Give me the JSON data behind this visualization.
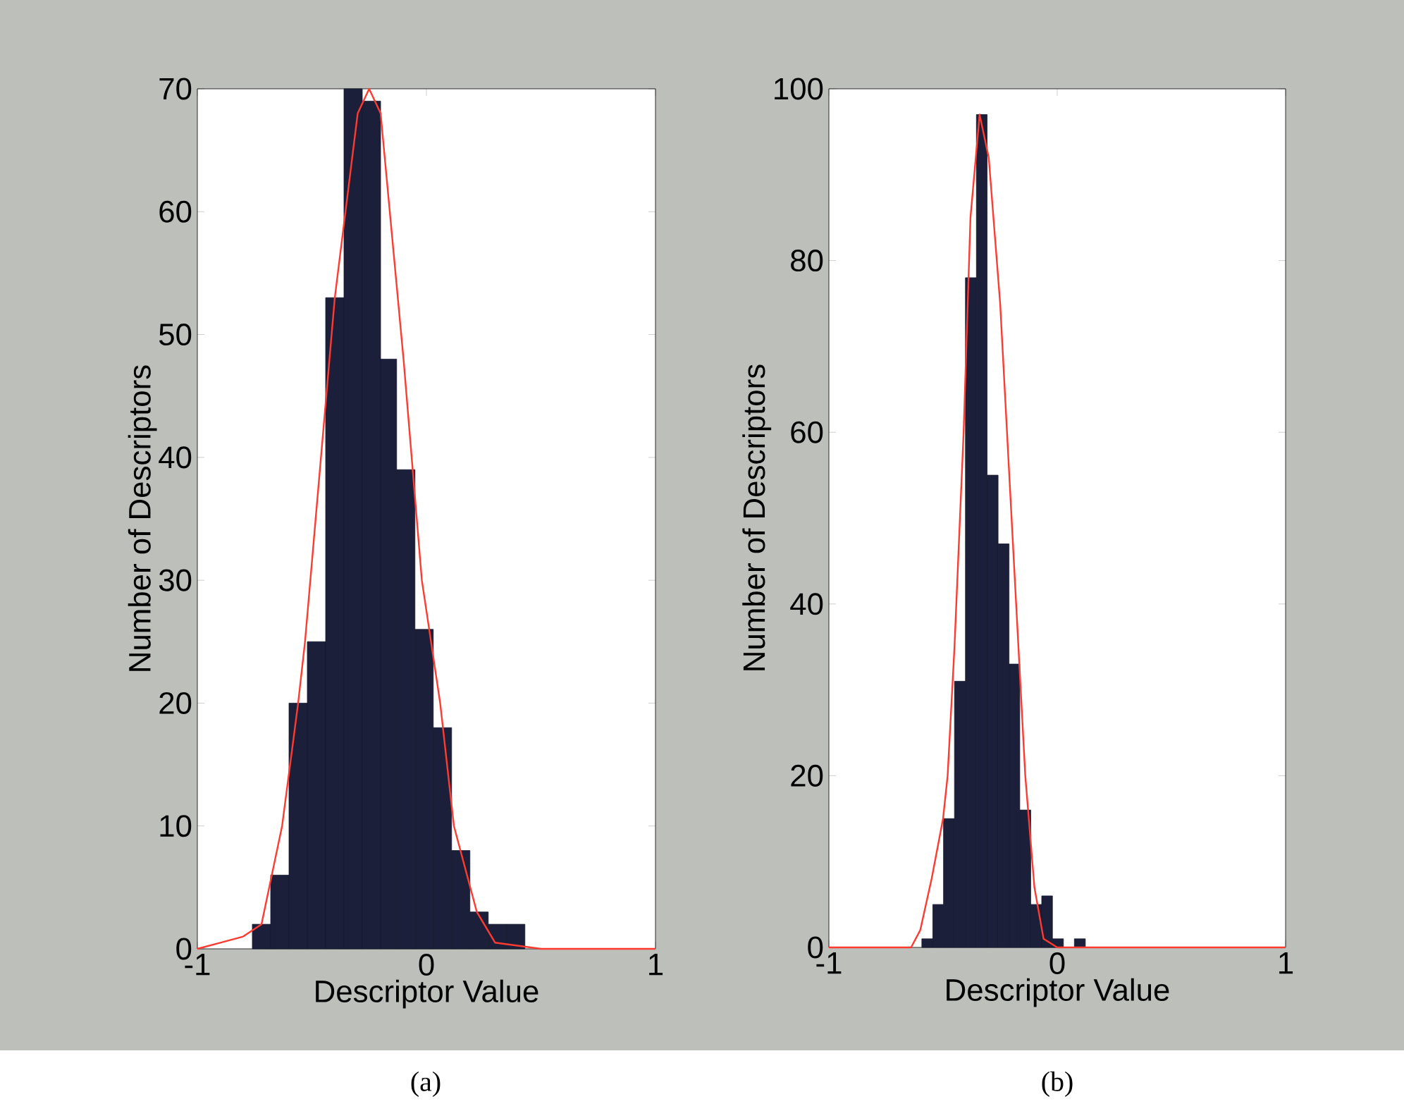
{
  "chart_data": [
    {
      "type": "histogram",
      "xlabel": "Descriptor Value",
      "ylabel": "Number of Descriptors",
      "annotations": [
        "(a)"
      ],
      "color": "#1c1f3a",
      "bins": [
        -0.76,
        -0.68,
        -0.6,
        -0.52,
        -0.44,
        -0.36,
        -0.28,
        -0.2,
        -0.13,
        -0.05,
        0.03,
        0.11,
        0.19,
        0.27,
        0.35,
        0.43
      ],
      "values": [
        2,
        6,
        20,
        25,
        53,
        70,
        69,
        48,
        39,
        26,
        18,
        8,
        3,
        2,
        2
      ],
      "series": [
        {
          "type": "line",
          "color": "#ff3b30",
          "x": [
            -1,
            -0.9,
            -0.8,
            -0.72,
            -0.63,
            -0.56,
            -0.53,
            -0.4,
            -0.3,
            -0.25,
            -0.2,
            -0.1,
            -0.06,
            -0.02,
            0.06,
            0.12,
            0.22,
            0.3,
            0.5,
            1
          ],
          "values": [
            0,
            0.5,
            1,
            2,
            10,
            20,
            25,
            53,
            68,
            70,
            68,
            48,
            39,
            30,
            20,
            10,
            3,
            0.5,
            0,
            0
          ]
        }
      ],
      "xlim": [
        -1,
        1
      ],
      "ylim": [
        0,
        70
      ],
      "xticks": [
        -1,
        0,
        1
      ],
      "yticks": [
        0,
        10,
        20,
        30,
        40,
        50,
        60,
        70
      ]
    },
    {
      "type": "histogram",
      "xlabel": "Descriptor Value",
      "ylabel": "Number of Descriptors",
      "annotations": [
        "(b)"
      ],
      "color": "#1c1f3a",
      "bins": [
        -0.593,
        -0.545,
        -0.498,
        -0.45,
        -0.402,
        -0.354,
        -0.307,
        -0.259,
        -0.211,
        -0.164,
        -0.116,
        -0.068,
        -0.021,
        0.027,
        0.075,
        0.123
      ],
      "values": [
        1,
        5,
        15,
        31,
        78,
        97,
        55,
        47,
        33,
        16,
        5,
        6,
        1,
        0,
        1
      ],
      "series": [
        {
          "type": "line",
          "color": "#ff3b30",
          "x": [
            -1,
            -0.64,
            -0.6,
            -0.55,
            -0.5,
            -0.48,
            -0.45,
            -0.41,
            -0.38,
            -0.34,
            -0.3,
            -0.25,
            -0.22,
            -0.18,
            -0.14,
            -0.1,
            -0.06,
            0,
            1
          ],
          "values": [
            0,
            0,
            2,
            8,
            15,
            20,
            35,
            60,
            85,
            97,
            92,
            75,
            60,
            40,
            20,
            7,
            1,
            0,
            0
          ]
        }
      ],
      "xlim": [
        -1,
        1
      ],
      "ylim": [
        0,
        100
      ],
      "xticks": [
        -1,
        0,
        1
      ],
      "yticks": [
        0,
        20,
        40,
        60,
        80,
        100
      ]
    }
  ]
}
